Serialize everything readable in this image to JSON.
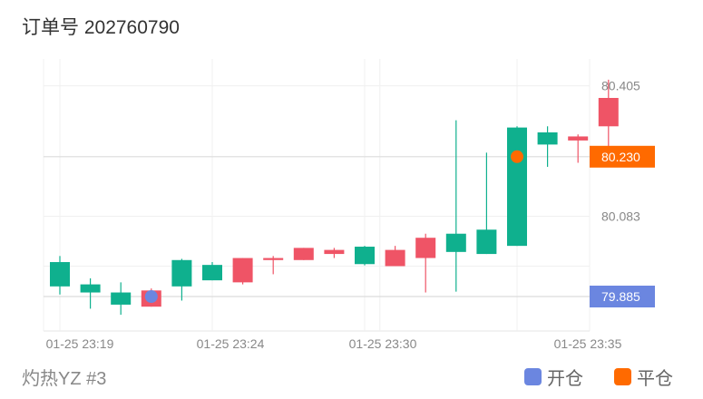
{
  "header": {
    "title": "订单号 202760790"
  },
  "footer": {
    "symbol": "灼热YZ #3"
  },
  "legend": {
    "open": {
      "label": "开仓",
      "color": "#6b86e0"
    },
    "close": {
      "label": "平仓",
      "color": "#ff6a00"
    }
  },
  "colors": {
    "up": "#0fb08e",
    "down": "#ef5466",
    "grid": "#f0f0f0",
    "axis": "#888888"
  },
  "chart_data": {
    "type": "candlestick",
    "x_tick_labels": [
      "01-25 23:19",
      "01-25 23:24",
      "01-25 23:30",
      "01-25 23:35"
    ],
    "x_tick_positions": [
      0,
      5,
      10,
      15
    ],
    "y_tick_labels": [
      "80.405",
      "80.083"
    ],
    "ylim": [
      79.8,
      80.46
    ],
    "price_lines": [
      {
        "label": "80.230",
        "value": 80.23,
        "type": "close"
      },
      {
        "label": "79.885",
        "value": 79.885,
        "type": "open"
      }
    ],
    "markers": [
      {
        "type": "open",
        "index": 3,
        "value": 79.885
      },
      {
        "type": "close",
        "index": 15,
        "value": 80.23
      }
    ],
    "candles": [
      {
        "o": 79.91,
        "h": 79.985,
        "l": 79.89,
        "c": 79.97
      },
      {
        "o": 79.895,
        "h": 79.93,
        "l": 79.855,
        "c": 79.915
      },
      {
        "o": 79.865,
        "h": 79.92,
        "l": 79.84,
        "c": 79.895
      },
      {
        "o": 79.9,
        "h": 79.905,
        "l": 79.86,
        "c": 79.86
      },
      {
        "o": 79.91,
        "h": 79.978,
        "l": 79.875,
        "c": 79.975
      },
      {
        "o": 79.925,
        "h": 79.97,
        "l": 79.925,
        "c": 79.963
      },
      {
        "o": 79.98,
        "h": 79.98,
        "l": 79.915,
        "c": 79.92
      },
      {
        "o": 79.98,
        "h": 79.985,
        "l": 79.94,
        "c": 79.975
      },
      {
        "o": 80.005,
        "h": 80.005,
        "l": 79.975,
        "c": 79.975
      },
      {
        "o": 80.0,
        "h": 80.005,
        "l": 79.98,
        "c": 79.99
      },
      {
        "o": 79.965,
        "h": 80.01,
        "l": 79.962,
        "c": 80.008
      },
      {
        "o": 80.0,
        "h": 80.01,
        "l": 79.96,
        "c": 79.96
      },
      {
        "o": 80.03,
        "h": 80.04,
        "l": 79.895,
        "c": 79.98
      },
      {
        "o": 79.995,
        "h": 80.32,
        "l": 79.897,
        "c": 80.04
      },
      {
        "o": 79.99,
        "h": 80.24,
        "l": 79.99,
        "c": 80.05
      },
      {
        "o": 80.01,
        "h": 80.305,
        "l": 80.01,
        "c": 80.302
      },
      {
        "o": 80.26,
        "h": 80.305,
        "l": 80.205,
        "c": 80.29
      },
      {
        "o": 80.28,
        "h": 80.285,
        "l": 80.215,
        "c": 80.27
      },
      {
        "o": 80.375,
        "h": 80.42,
        "l": 80.255,
        "c": 80.305
      }
    ]
  }
}
